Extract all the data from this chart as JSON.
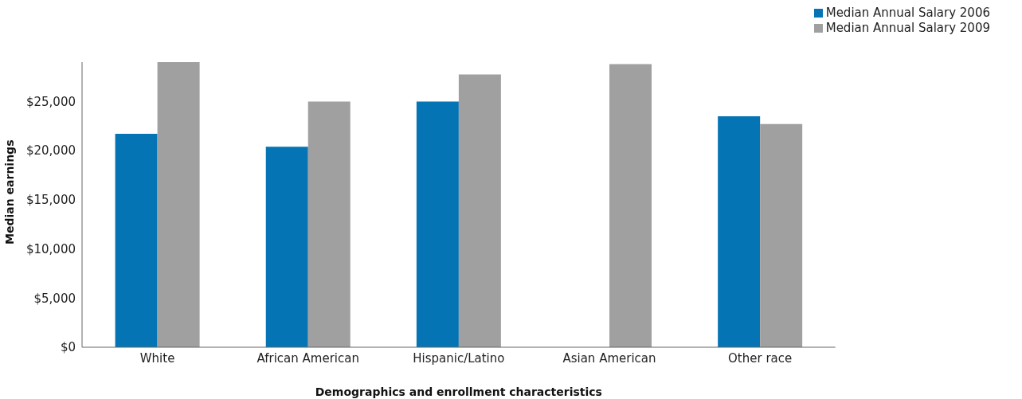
{
  "chart_data": {
    "type": "bar",
    "xlabel": "Demographics and enrollment characteristics",
    "ylabel": "Median earnings",
    "categories": [
      "White",
      "African American",
      "Hispanic/Latino",
      "Asian American",
      "Other race"
    ],
    "series": [
      {
        "name": "Median Annual Salary 2006",
        "color": "#0474b4",
        "values": [
          21700,
          20400,
          25000,
          null,
          23500
        ]
      },
      {
        "name": "Median Annual Salary 2009",
        "color": "#a0a0a0",
        "values": [
          29000,
          25000,
          27750,
          28800,
          22700
        ]
      }
    ],
    "ylim": [
      0,
      29000
    ],
    "yticks": [
      {
        "value": 0,
        "label": "$0"
      },
      {
        "value": 5000,
        "label": "$5,000"
      },
      {
        "value": 10000,
        "label": "$10,000"
      },
      {
        "value": 15000,
        "label": "$15,000"
      },
      {
        "value": 20000,
        "label": "$20,000"
      },
      {
        "value": 25000,
        "label": "$25,000"
      }
    ],
    "grid": false,
    "legend": "top right"
  }
}
